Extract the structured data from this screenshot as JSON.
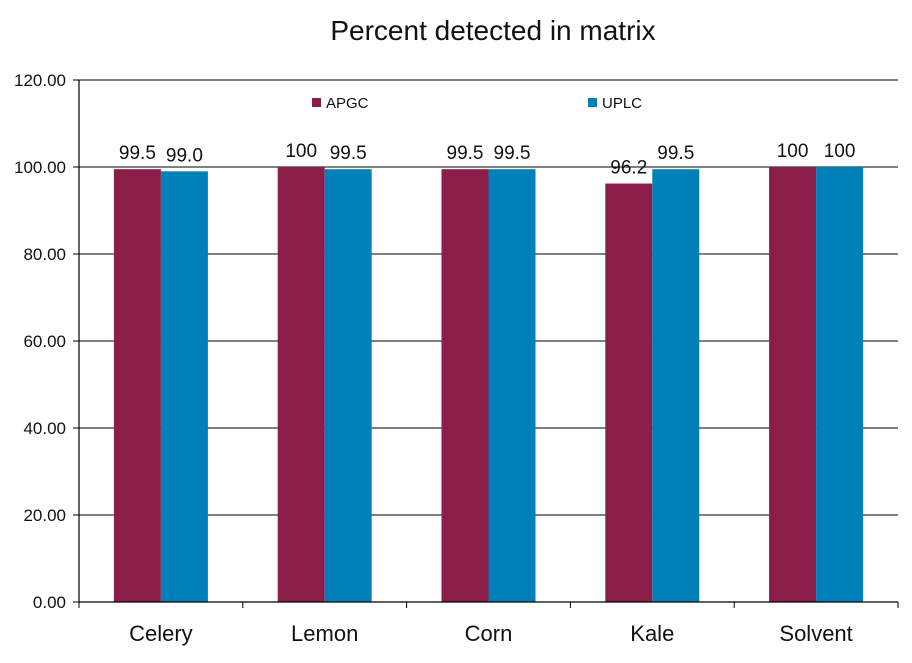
{
  "chart_data": {
    "type": "bar",
    "title": "Percent detected in matrix",
    "xlabel": "",
    "ylabel": "",
    "categories": [
      "Celery",
      "Lemon",
      "Corn",
      "Kale",
      "Solvent"
    ],
    "series": [
      {
        "name": "APGC",
        "color": "#8b1e49",
        "values": [
          99.5,
          100,
          99.5,
          96.2,
          100
        ],
        "labels": [
          "99.5",
          "100",
          "99.5",
          "96.2",
          "100"
        ]
      },
      {
        "name": "UPLC",
        "color": "#0080b8",
        "values": [
          99.0,
          99.5,
          99.5,
          99.5,
          100
        ],
        "labels": [
          "99.0",
          "99.5",
          "99.5",
          "99.5",
          "100"
        ]
      }
    ],
    "ylim": [
      0,
      120
    ],
    "yticks": [
      0,
      20,
      40,
      60,
      80,
      100,
      120
    ],
    "ytick_labels": [
      "0.00",
      "20.00",
      "40.00",
      "60.00",
      "80.00",
      "100.00",
      "120.00"
    ],
    "grid": true,
    "legend_position": "top"
  }
}
